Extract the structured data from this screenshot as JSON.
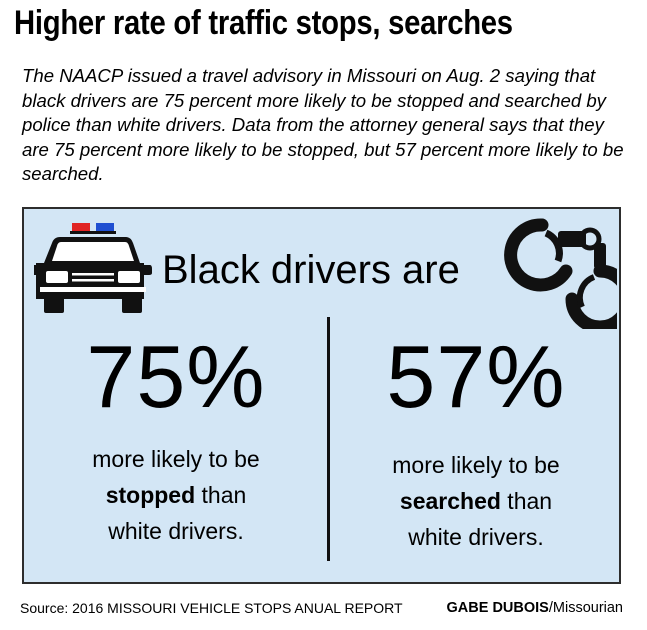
{
  "title": "Higher rate of traffic stops, searches",
  "intro": "The NAACP issued a travel advisory in Missouri on Aug. 2 saying that black drivers are 75 percent more likely to be stopped and searched by police than white drivers. Data from the attorney general says that they are 75 percent more likely to be stopped, but 57 percent more likely to be searched.",
  "panel": {
    "headline": "Black drivers are",
    "icons": {
      "left": "police-car-icon",
      "right": "handcuffs-icon"
    },
    "stats": [
      {
        "value": "75%",
        "line1": "more likely to be",
        "emphasis": "stopped",
        "after": " than",
        "line3": "white drivers."
      },
      {
        "value": "57%",
        "line1": "more likely to be",
        "emphasis": "searched",
        "after": " than",
        "line3": "white drivers."
      }
    ],
    "colors": {
      "background": "#d3e6f5",
      "siren_red": "#e02424",
      "siren_blue": "#1f4fd1"
    }
  },
  "footer": {
    "source": "Source: 2016 MISSOURI VEHICLE STOPS ANUAL REPORT",
    "credit_name": "GABE DUBOIS",
    "credit_outlet": "/Missourian"
  }
}
